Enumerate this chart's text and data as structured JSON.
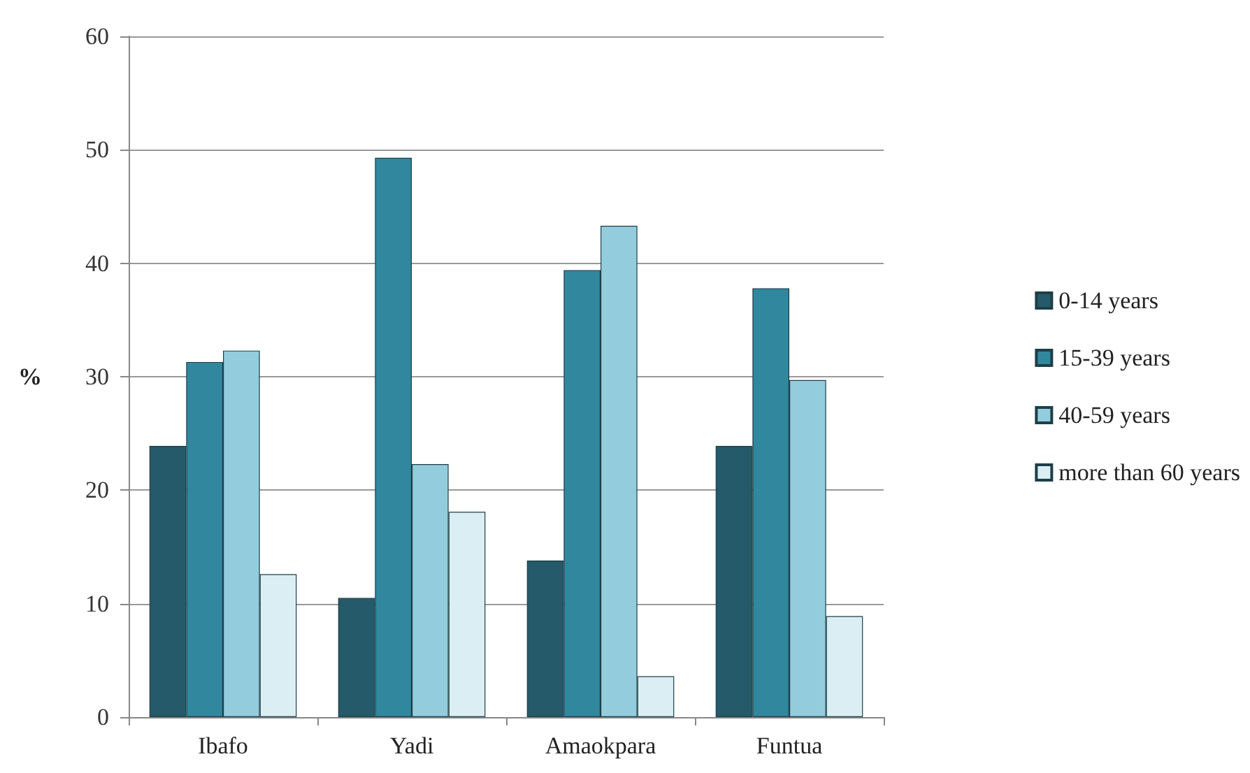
{
  "chart_data": {
    "type": "bar",
    "ylabel": "%",
    "categories": [
      "Ibafo",
      "Yadi",
      "Amaokpara",
      "Funtua"
    ],
    "series": [
      {
        "name": "0-14 years",
        "color": "#245a69",
        "values": [
          23.9,
          10.5,
          13.8,
          23.9
        ]
      },
      {
        "name": "15-39 years",
        "color": "#31879e",
        "values": [
          31.3,
          49.3,
          39.4,
          37.8
        ]
      },
      {
        "name": "40-59 years",
        "color": "#93cddd",
        "values": [
          32.3,
          22.3,
          43.3,
          29.7
        ]
      },
      {
        "name": "more than 60 years",
        "color": "#daeef3",
        "values": [
          12.6,
          18.1,
          3.6,
          8.9
        ]
      }
    ],
    "ylim": [
      0,
      60
    ],
    "yticks": [
      0,
      10,
      20,
      30,
      40,
      50,
      60
    ],
    "grid": "y",
    "legend": "right"
  }
}
